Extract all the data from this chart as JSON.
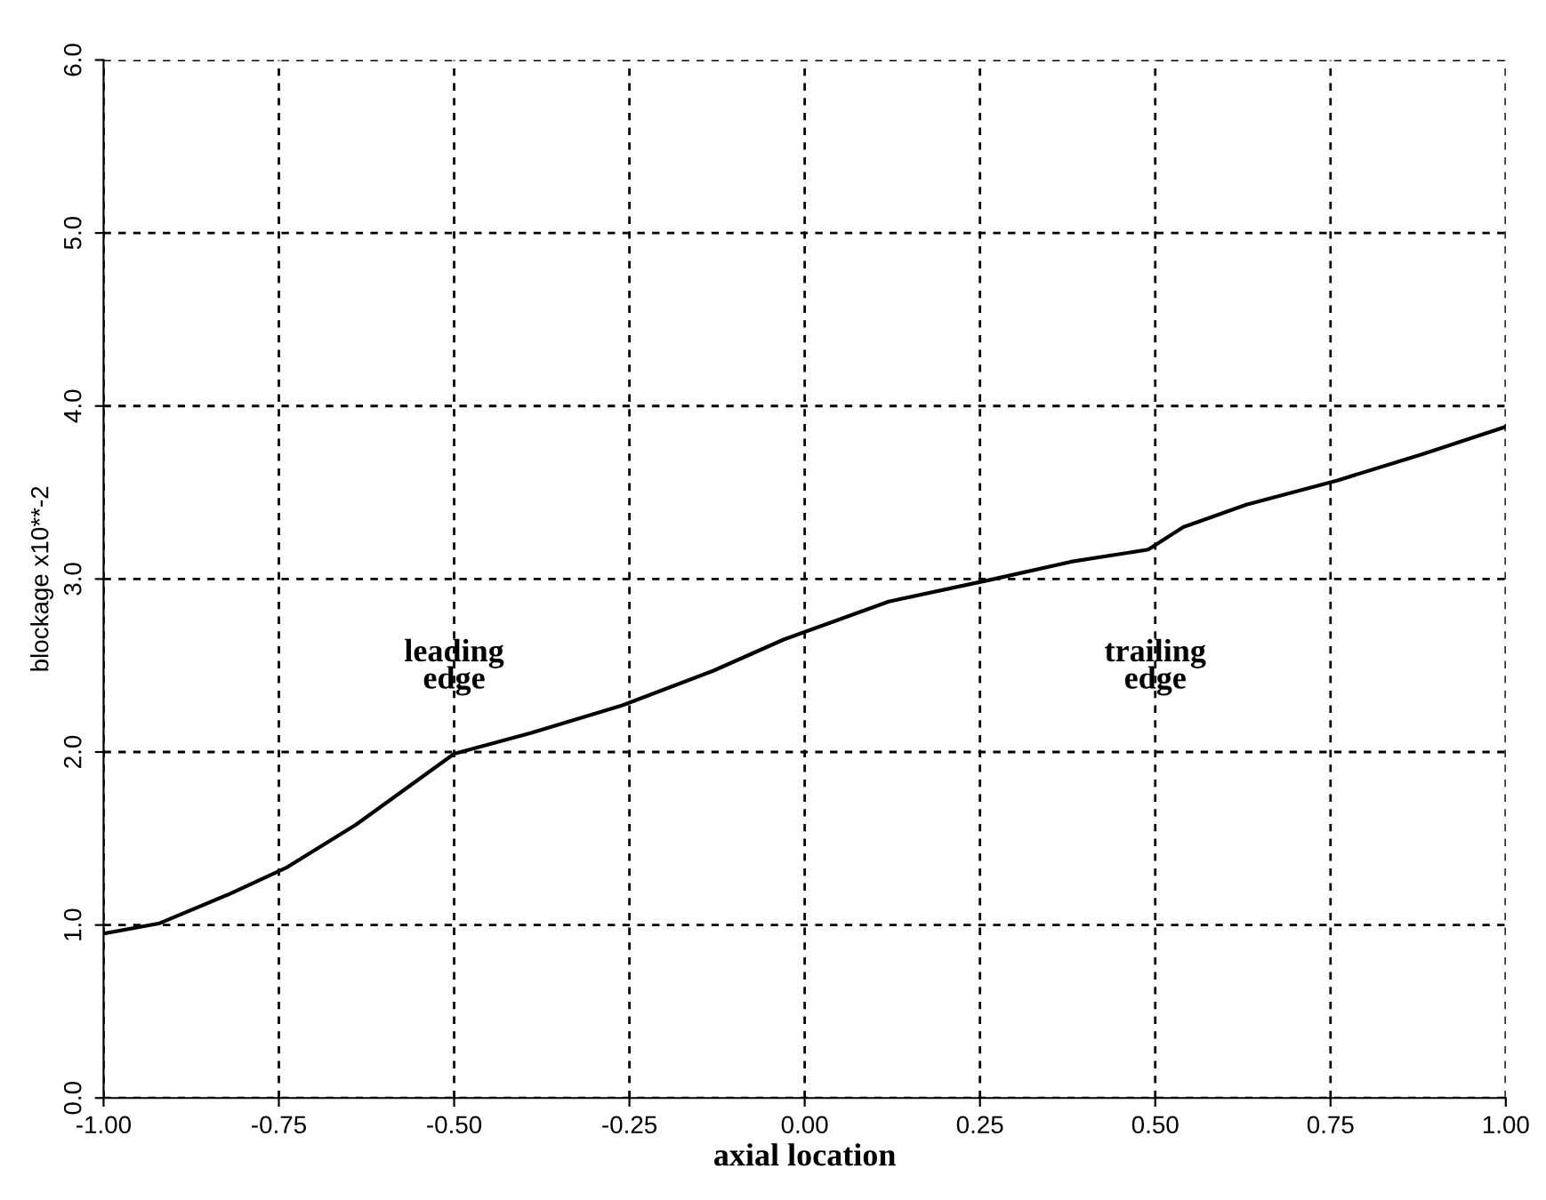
{
  "chart_data": {
    "type": "line",
    "xlabel": "axial location",
    "ylabel": "blockage x10**-2",
    "x": [
      -1.0,
      -0.92,
      -0.82,
      -0.74,
      -0.64,
      -0.5,
      -0.39,
      -0.26,
      -0.13,
      -0.03,
      0.12,
      0.27,
      0.38,
      0.49,
      0.54,
      0.63,
      0.76,
      0.88,
      1.0
    ],
    "series": [
      {
        "color": "#000000",
        "values": [
          0.95,
          1.01,
          1.18,
          1.33,
          1.58,
          1.99,
          2.11,
          2.27,
          2.47,
          2.65,
          2.87,
          3.0,
          3.1,
          3.17,
          3.3,
          3.43,
          3.57,
          3.72,
          3.88
        ]
      }
    ],
    "xlim": [
      -1.0,
      1.0
    ],
    "ylim": [
      0.0,
      6.0
    ],
    "xticks": [
      {
        "value": -1.0,
        "label": "-1.00"
      },
      {
        "value": -0.75,
        "label": "-0.75"
      },
      {
        "value": -0.5,
        "label": "-0.50"
      },
      {
        "value": -0.25,
        "label": "-0.25"
      },
      {
        "value": 0.0,
        "label": "0.00"
      },
      {
        "value": 0.25,
        "label": "0.25"
      },
      {
        "value": 0.5,
        "label": "0.50"
      },
      {
        "value": 0.75,
        "label": "0.75"
      },
      {
        "value": 1.0,
        "label": "1.00"
      }
    ],
    "yticks": [
      {
        "value": 0,
        "label": "0.0"
      },
      {
        "value": 1,
        "label": "1.0"
      },
      {
        "value": 2,
        "label": "2.0"
      },
      {
        "value": 3,
        "label": "3.0"
      },
      {
        "value": 4,
        "label": "4.0"
      },
      {
        "value": 5,
        "label": "5.0"
      },
      {
        "value": 6,
        "label": "6.0"
      }
    ],
    "grid": true,
    "line_style": "solid",
    "marker": "none",
    "annotations": [
      "leading\nedge",
      "trailing\nedge"
    ]
  }
}
